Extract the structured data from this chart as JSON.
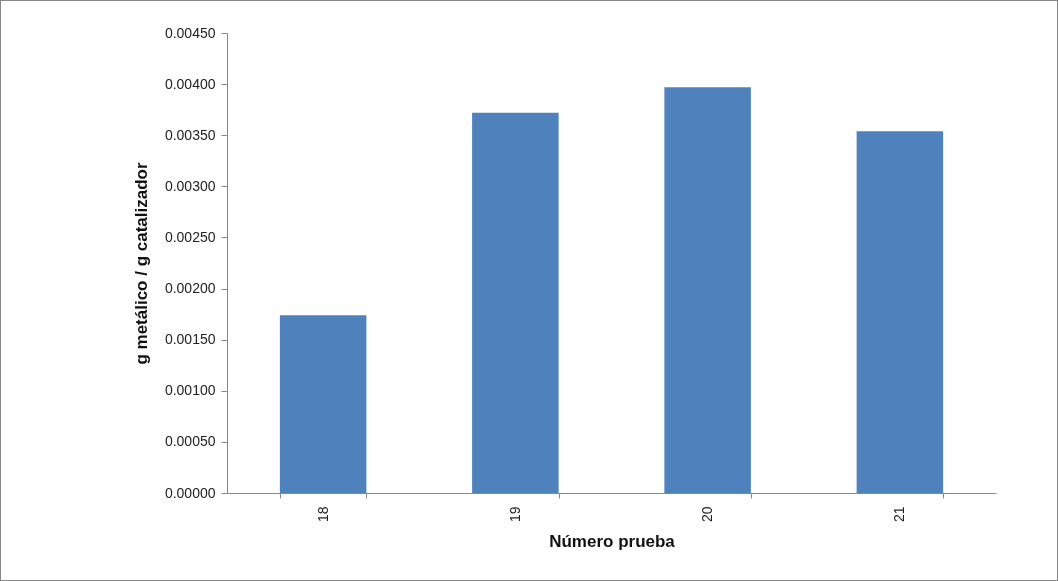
{
  "chart_data": {
    "type": "bar",
    "xlabel": "Número   prueba",
    "ylabel": "g metálico / g  catalizador",
    "categories": [
      "18",
      "19",
      "20",
      "21"
    ],
    "values": [
      0.00174,
      0.00372,
      0.00397,
      0.00354
    ],
    "color": "#4f81bd",
    "ylim": [
      0,
      0.0045
    ],
    "yticks": [
      {
        "value": 0,
        "label": "0.00000"
      },
      {
        "value": 0.0005,
        "label": "0.00050"
      },
      {
        "value": 0.001,
        "label": "0.00100"
      },
      {
        "value": 0.0015,
        "label": "0.00150"
      },
      {
        "value": 0.002,
        "label": "0.00200"
      },
      {
        "value": 0.0025,
        "label": "0.00250"
      },
      {
        "value": 0.003,
        "label": "0.00300"
      },
      {
        "value": 0.0035,
        "label": "0.00350"
      },
      {
        "value": 0.004,
        "label": "0.00400"
      },
      {
        "value": 0.0045,
        "label": "0.00450"
      }
    ],
    "grid": false
  }
}
